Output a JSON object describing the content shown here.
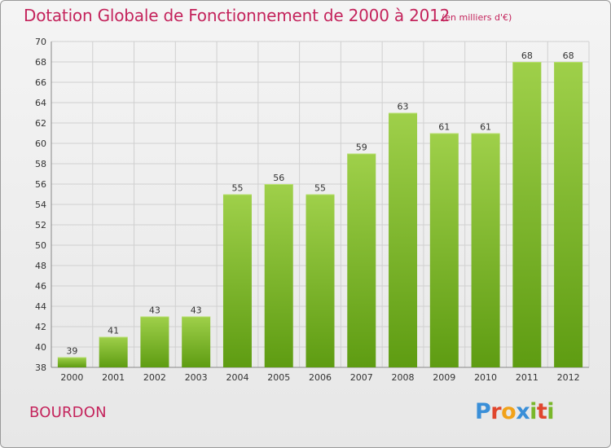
{
  "header": {
    "title": "Dotation Globale de Fonctionnement de 2000 à 2012",
    "subtitle": "(en milliers d'€)"
  },
  "footer": {
    "place": "BOURDON",
    "logo": {
      "text": "Proxiti",
      "letters": [
        {
          "ch": "P",
          "color": "#3a8fd8"
        },
        {
          "ch": "r",
          "color": "#e0462d"
        },
        {
          "ch": "o",
          "color": "#f1a21a"
        },
        {
          "ch": "x",
          "color": "#3a8fd8"
        },
        {
          "ch": "i",
          "color": "#79b72a"
        },
        {
          "ch": "t",
          "color": "#e0462d"
        },
        {
          "ch": "i",
          "color": "#79b72a"
        }
      ]
    }
  },
  "colors": {
    "accent": "#c4245c",
    "bar_top": "#9fd04a",
    "bar_bottom": "#5e9c12",
    "grid": "#d0d0d0",
    "axis_text": "#333333"
  },
  "chart_data": {
    "type": "bar",
    "categories": [
      "2000",
      "2001",
      "2002",
      "2003",
      "2004",
      "2005",
      "2006",
      "2007",
      "2008",
      "2009",
      "2010",
      "2011",
      "2012"
    ],
    "values": [
      39,
      41,
      43,
      43,
      55,
      56,
      55,
      59,
      63,
      61,
      61,
      68,
      68
    ],
    "data_labels": [
      "39",
      "41",
      "43",
      "43",
      "55",
      "56",
      "55",
      "59",
      "63",
      "61",
      "61",
      "68",
      "68"
    ],
    "ylim": [
      38,
      70
    ],
    "yticks": [
      38,
      40,
      42,
      44,
      46,
      48,
      50,
      52,
      54,
      56,
      58,
      60,
      62,
      64,
      66,
      68,
      70
    ],
    "grid": true,
    "legend": "none"
  }
}
